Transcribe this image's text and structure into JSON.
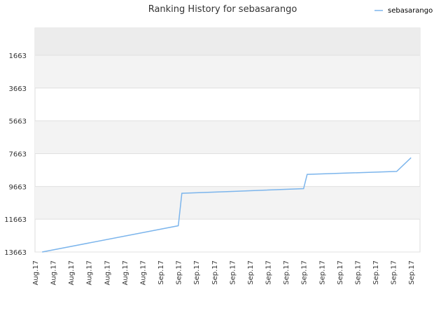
{
  "chart_data": {
    "type": "line",
    "title": "Ranking History for sebasarango",
    "xlabel": "",
    "ylabel": "",
    "y_inverted": true,
    "ylim": [
      13663,
      0
    ],
    "y_ticks": [
      1663,
      3663,
      5663,
      7663,
      9663,
      11663,
      13663
    ],
    "x_tick_labels": [
      "Aug.17",
      "Aug.17",
      "Aug.17",
      "Aug.17",
      "Aug.17",
      "Aug.17",
      "Aug.17",
      "Sep.17",
      "Sep.17",
      "Sep.17",
      "Sep.17",
      "Sep.17",
      "Sep.17",
      "Sep.17",
      "Sep.17",
      "Sep.17",
      "Sep.17",
      "Sep.17",
      "Sep.17",
      "Sep.17",
      "Sep.17",
      "Sep.17"
    ],
    "grid": true,
    "legend_position": "top-right",
    "colors": {
      "line": "#7cb5ec",
      "band": "#f3f3f3",
      "top_band": "#ececec",
      "grid": "#e0e0e0"
    },
    "series": [
      {
        "name": "sebasarango",
        "x": [
          0.4,
          8.0,
          8.2,
          11.0,
          15.0,
          15.2,
          20.2,
          21.0
        ],
        "y": [
          13663,
          12063,
          10080,
          9970,
          9800,
          8930,
          8750,
          7910
        ]
      }
    ]
  }
}
